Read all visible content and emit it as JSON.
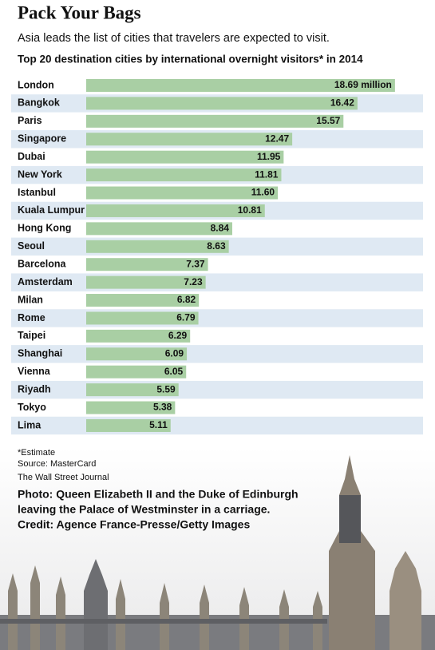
{
  "chart_data": {
    "type": "bar",
    "orientation": "horizontal",
    "title": "Pack Your Bags",
    "subtitle": "Asia leads the list of cities that travelers are expected to visit.",
    "chart_title": "Top 20 destination cities by international overnight visitors* in 2014",
    "categories": [
      "London",
      "Bangkok",
      "Paris",
      "Singapore",
      "Dubai",
      "New York",
      "Istanbul",
      "Kuala Lumpur",
      "Hong Kong",
      "Seoul",
      "Barcelona",
      "Amsterdam",
      "Milan",
      "Rome",
      "Taipei",
      "Shanghai",
      "Vienna",
      "Riyadh",
      "Tokyo",
      "Lima"
    ],
    "values": [
      18.69,
      16.42,
      15.57,
      12.47,
      11.95,
      11.81,
      11.6,
      10.81,
      8.84,
      8.63,
      7.37,
      7.23,
      6.82,
      6.79,
      6.29,
      6.09,
      6.05,
      5.59,
      5.38,
      5.11
    ],
    "value_labels": [
      "18.69 million",
      "16.42",
      "15.57",
      "12.47",
      "11.95",
      "11.81",
      "11.60",
      "10.81",
      "8.84",
      "8.63",
      "7.37",
      "7.23",
      "6.82",
      "6.79",
      "6.29",
      "6.09",
      "6.05",
      "5.59",
      "5.38",
      "5.11"
    ],
    "color": "#a9cfa4",
    "xlim": [
      0,
      20
    ],
    "notes": [
      "*Estimate",
      "Source: MasterCard",
      "The Wall Street Journal"
    ],
    "caption": [
      "Photo: Queen Elizabeth II and the Duke of Edinburgh",
      "leaving the Palace of Westminster in a carriage.",
      "Credit: Agence France-Presse/Getty Images"
    ]
  }
}
